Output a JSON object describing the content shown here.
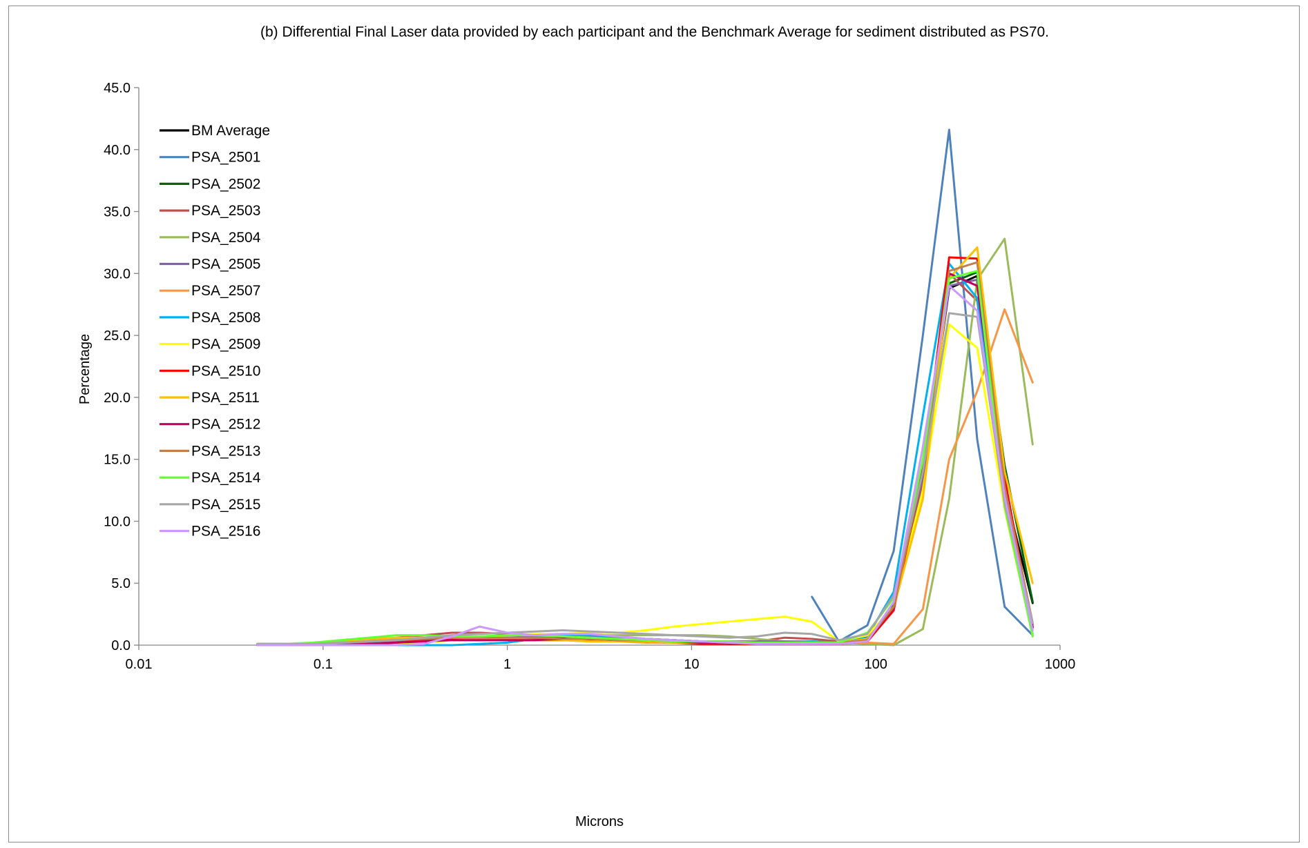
{
  "chart_data": {
    "type": "line",
    "title": "(b) Differential Final Laser data provided by each participant and the Benchmark Average for sediment distributed as PS70.",
    "xlabel": "Microns",
    "ylabel": "Percentage",
    "xscale": "log",
    "xlim": [
      0.01,
      1000
    ],
    "ylim": [
      0,
      45
    ],
    "x_ticks": [
      "0.01",
      "0.1",
      "1",
      "10",
      "100",
      "1000"
    ],
    "y_ticks": [
      "0.0",
      "5.0",
      "10.0",
      "15.0",
      "20.0",
      "25.0",
      "30.0",
      "35.0",
      "40.0",
      "45.0"
    ],
    "grid": false,
    "legend_position": "top-left inside",
    "x": [
      0.044,
      0.062,
      0.088,
      0.125,
      0.177,
      0.25,
      0.354,
      0.5,
      0.707,
      1,
      1.41,
      2,
      2.83,
      4,
      5.66,
      8,
      11.3,
      16,
      22.6,
      32,
      45,
      63,
      90,
      125,
      180,
      250,
      355,
      500,
      710
    ],
    "series": [
      {
        "name": "BM Average",
        "color": "#000000",
        "values": [
          0.1,
          0.1,
          0.1,
          0.2,
          0.3,
          0.3,
          0.4,
          0.5,
          0.5,
          0.6,
          0.6,
          0.6,
          0.6,
          0.5,
          0.5,
          0.4,
          0.3,
          0.2,
          0.2,
          0.2,
          0.2,
          0.1,
          0.5,
          3.2,
          13.5,
          28.8,
          29.8,
          12.5,
          3.4
        ]
      },
      {
        "name": "PSA_2501",
        "color": "#4F81BD",
        "values": [
          null,
          null,
          null,
          null,
          null,
          null,
          null,
          null,
          null,
          null,
          null,
          null,
          null,
          null,
          null,
          null,
          null,
          null,
          null,
          null,
          3.9,
          0.3,
          1.6,
          7.6,
          25.0,
          41.6,
          16.6,
          3.1,
          0.8
        ]
      },
      {
        "name": "PSA_2502",
        "color": "#00640A",
        "values": [
          0.1,
          0.1,
          0.1,
          0.1,
          0.2,
          0.3,
          0.3,
          0.4,
          0.4,
          0.4,
          0.4,
          0.4,
          0.4,
          0.4,
          0.3,
          0.2,
          0.2,
          0.1,
          0.1,
          0.1,
          0.1,
          0.1,
          0.6,
          3.2,
          13.2,
          29.2,
          30.1,
          14.5,
          3.5
        ]
      },
      {
        "name": "PSA_2503",
        "color": "#C0504D",
        "values": [
          0.1,
          0.1,
          0.1,
          0.2,
          0.4,
          0.6,
          0.8,
          1.0,
          1.0,
          0.9,
          0.8,
          0.7,
          0.6,
          0.5,
          0.4,
          0.3,
          0.3,
          0.3,
          0.3,
          0.6,
          0.5,
          0.3,
          0.6,
          2.9,
          13.0,
          30.0,
          27.8,
          12.0,
          1.4
        ]
      },
      {
        "name": "PSA_2504",
        "color": "#9BBB59",
        "values": [
          0.1,
          0.1,
          0.1,
          0.2,
          0.3,
          0.4,
          0.5,
          0.6,
          0.7,
          0.8,
          0.8,
          0.8,
          0.8,
          0.8,
          0.8,
          0.8,
          0.8,
          0.7,
          0.5,
          0.3,
          0.2,
          0.2,
          0.1,
          0.0,
          1.3,
          11.8,
          29.5,
          32.8,
          16.2
        ]
      },
      {
        "name": "PSA_2505",
        "color": "#8064A2",
        "values": [
          0.1,
          0.1,
          0.1,
          0.1,
          0.2,
          0.3,
          0.4,
          0.5,
          0.6,
          0.6,
          0.7,
          0.7,
          0.7,
          0.6,
          0.5,
          0.4,
          0.3,
          0.3,
          0.3,
          0.3,
          0.3,
          0.2,
          0.5,
          3.0,
          13.5,
          29.0,
          29.5,
          12.5,
          1.7
        ]
      },
      {
        "name": "PSA_2507",
        "color": "#F79646",
        "values": [
          0.1,
          0.1,
          0.1,
          0.2,
          0.4,
          0.5,
          0.5,
          0.5,
          0.5,
          0.5,
          0.4,
          0.4,
          0.3,
          0.3,
          0.2,
          0.2,
          0.2,
          0.2,
          0.2,
          0.1,
          0.1,
          0.1,
          0.2,
          0.1,
          2.9,
          15.0,
          20.5,
          27.1,
          21.2
        ]
      },
      {
        "name": "PSA_2508",
        "color": "#00B0F0",
        "values": [
          0.0,
          0.0,
          0.0,
          0.0,
          0.0,
          0.0,
          0.0,
          0.0,
          0.1,
          0.2,
          0.5,
          0.8,
          0.8,
          0.7,
          0.5,
          0.4,
          0.3,
          0.2,
          0.2,
          0.2,
          0.3,
          0.2,
          0.7,
          4.3,
          18.5,
          30.8,
          28.0,
          11.5,
          0.9
        ]
      },
      {
        "name": "PSA_2509",
        "color": "#FFFF00",
        "values": [
          0.0,
          0.0,
          0.0,
          0.0,
          0.0,
          0.1,
          0.2,
          0.4,
          0.6,
          0.8,
          0.9,
          0.9,
          1.0,
          1.0,
          1.2,
          1.5,
          1.7,
          1.9,
          2.1,
          2.3,
          1.9,
          0.3,
          0.8,
          3.1,
          12.5,
          25.9,
          24.0,
          11.0,
          0.8
        ]
      },
      {
        "name": "PSA_2510",
        "color": "#FF0000",
        "values": [
          0.0,
          0.0,
          0.0,
          0.0,
          0.1,
          0.2,
          0.4,
          0.5,
          0.5,
          0.4,
          0.4,
          0.4,
          0.4,
          0.4,
          0.3,
          0.2,
          0.1,
          0.1,
          0.1,
          0.1,
          0.1,
          0.1,
          0.3,
          2.8,
          14.0,
          31.3,
          31.2,
          13.5,
          1.4
        ]
      },
      {
        "name": "PSA_2511",
        "color": "#FFC000",
        "values": [
          0.1,
          0.1,
          0.1,
          0.3,
          0.5,
          0.6,
          0.6,
          0.6,
          0.5,
          0.5,
          0.4,
          0.4,
          0.3,
          0.3,
          0.3,
          0.2,
          0.2,
          0.2,
          0.2,
          0.2,
          0.2,
          0.2,
          0.5,
          3.0,
          11.8,
          29.6,
          32.1,
          14.0,
          5.0
        ]
      },
      {
        "name": "PSA_2512",
        "color": "#C00060",
        "values": [
          0.0,
          0.0,
          0.0,
          0.0,
          0.1,
          0.2,
          0.3,
          0.4,
          0.4,
          0.4,
          0.4,
          0.5,
          0.5,
          0.4,
          0.4,
          0.3,
          0.2,
          0.2,
          0.2,
          0.2,
          0.1,
          0.1,
          0.4,
          3.0,
          14.5,
          30.0,
          29.0,
          13.0,
          1.5
        ]
      },
      {
        "name": "PSA_2513",
        "color": "#C0804D",
        "values": [
          0.1,
          0.1,
          0.1,
          0.2,
          0.3,
          0.4,
          0.5,
          0.6,
          0.6,
          0.6,
          0.6,
          0.5,
          0.5,
          0.4,
          0.4,
          0.3,
          0.3,
          0.2,
          0.2,
          0.2,
          0.2,
          0.2,
          0.4,
          3.1,
          14.0,
          30.2,
          30.9,
          12.8,
          1.8
        ]
      },
      {
        "name": "PSA_2514",
        "color": "#66FF33",
        "values": [
          0.1,
          0.1,
          0.2,
          0.4,
          0.6,
          0.8,
          0.8,
          0.7,
          0.7,
          0.8,
          0.8,
          0.7,
          0.6,
          0.5,
          0.4,
          0.3,
          0.3,
          0.3,
          0.2,
          0.2,
          0.2,
          0.2,
          1.0,
          3.8,
          15.0,
          29.6,
          30.2,
          11.2,
          0.7
        ]
      },
      {
        "name": "PSA_2515",
        "color": "#A6A6A6",
        "values": [
          0.1,
          0.1,
          0.1,
          0.2,
          0.3,
          0.4,
          0.6,
          0.8,
          0.9,
          1.0,
          1.1,
          1.2,
          1.1,
          1.0,
          0.9,
          0.8,
          0.7,
          0.6,
          0.7,
          1.0,
          0.9,
          0.4,
          0.9,
          4.0,
          14.0,
          26.8,
          26.5,
          11.5,
          1.8
        ]
      },
      {
        "name": "PSA_2516",
        "color": "#CC99FF",
        "values": [
          0.0,
          0.0,
          0.0,
          0.0,
          0.0,
          0.0,
          0.1,
          0.7,
          1.5,
          1.0,
          0.8,
          0.9,
          0.9,
          0.7,
          0.5,
          0.4,
          0.3,
          0.2,
          0.1,
          0.1,
          0.1,
          0.1,
          0.3,
          3.5,
          16.0,
          29.0,
          27.0,
          12.0,
          1.2
        ]
      }
    ]
  }
}
